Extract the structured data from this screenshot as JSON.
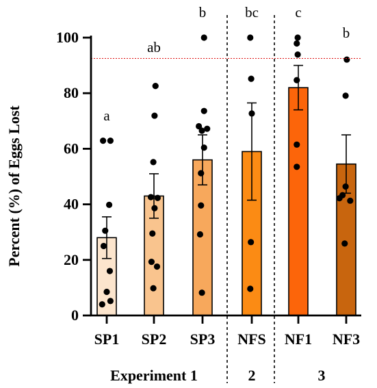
{
  "chart_data": {
    "type": "bar",
    "ylabel": "Percent (%) of Eggs Lost",
    "ylim": [
      0,
      100
    ],
    "yticks": [
      0,
      20,
      40,
      60,
      80,
      100
    ],
    "reference_line": {
      "y": 92.5,
      "color": "#e02020",
      "style": "dotted"
    },
    "categories": [
      "SP1",
      "SP2",
      "SP3",
      "NFS",
      "NF1",
      "NF3"
    ],
    "means": [
      28,
      43,
      56,
      59,
      82,
      54.5
    ],
    "sem": [
      7.5,
      8,
      9,
      17.5,
      8,
      10.5
    ],
    "significance_letters": [
      "a",
      "ab",
      "b",
      "bc",
      "c",
      "b"
    ],
    "bar_colors": [
      "#fce5cd",
      "#f9c48e",
      "#f7a85c",
      "#fb8b14",
      "#fc650a",
      "#c8650e"
    ],
    "points": [
      [
        [
          62.9,
          -0.12
        ],
        [
          62.9,
          0.12
        ],
        [
          39.8,
          0.08
        ],
        [
          30.5,
          -0.05
        ],
        [
          25,
          -0.1
        ],
        [
          16,
          0.1
        ],
        [
          8.5,
          0
        ],
        [
          5.2,
          0.12
        ],
        [
          4,
          -0.15
        ]
      ],
      [
        [
          82.6,
          0.05
        ],
        [
          71.9,
          0.02
        ],
        [
          55.2,
          -0.02
        ],
        [
          42.6,
          -0.1
        ],
        [
          42.3,
          0.12
        ],
        [
          38.6,
          0.02
        ],
        [
          29.5,
          -0.05
        ],
        [
          19.3,
          -0.08
        ],
        [
          17.6,
          0.1
        ],
        [
          9.8,
          -0.02
        ]
      ],
      [
        [
          100,
          0.05
        ],
        [
          73.6,
          0.05
        ],
        [
          68.1,
          -0.12
        ],
        [
          67.2,
          0.15
        ],
        [
          66.5,
          -0.02
        ],
        [
          60.4,
          0.05
        ],
        [
          51.2,
          -0.05
        ],
        [
          39.6,
          -0.05
        ],
        [
          29.2,
          -0.08
        ],
        [
          8.2,
          -0.02
        ]
      ],
      [
        [
          100,
          -0.05
        ],
        [
          85.2,
          -0.02
        ],
        [
          72.7,
          0
        ],
        [
          26.4,
          -0.03
        ],
        [
          9.6,
          -0.05
        ]
      ],
      [
        [
          100,
          -0.02
        ],
        [
          97.9,
          -0.05
        ],
        [
          93.9,
          -0.02
        ],
        [
          84.7,
          -0.05
        ],
        [
          61.5,
          -0.05
        ],
        [
          53.5,
          -0.05
        ]
      ],
      [
        [
          92.1,
          0.02
        ],
        [
          79.1,
          -0.02
        ],
        [
          46.4,
          -0.02
        ],
        [
          43.3,
          -0.12
        ],
        [
          42.2,
          -0.22
        ],
        [
          41.3,
          0.13
        ],
        [
          25.9,
          -0.05
        ]
      ]
    ],
    "groups": [
      {
        "label": "Experiment 1",
        "categories": [
          "SP1",
          "SP2",
          "SP3"
        ]
      },
      {
        "label": "2",
        "categories": [
          "NFS"
        ]
      },
      {
        "label": "3",
        "categories": [
          "NF1",
          "NF3"
        ]
      }
    ],
    "grid": false,
    "legend": "none"
  }
}
